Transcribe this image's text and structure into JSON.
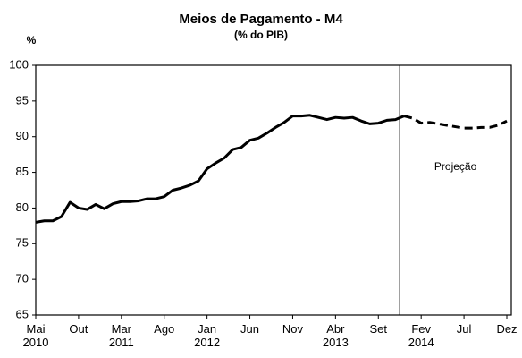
{
  "chart_data": {
    "type": "line",
    "title": "Meios de Pagamento - M4",
    "subtitle": "(% do PIB)",
    "y_label": "%",
    "annotation": "Projeção",
    "categories": [
      "Mai\n2010",
      null,
      null,
      null,
      null,
      "Out",
      null,
      null,
      null,
      null,
      "Mar\n2011",
      null,
      null,
      null,
      null,
      "Ago",
      null,
      null,
      null,
      null,
      "Jan\n2012",
      null,
      null,
      null,
      null,
      "Jun",
      null,
      null,
      null,
      null,
      "Nov",
      null,
      null,
      null,
      null,
      "Abr\n2013",
      null,
      null,
      null,
      null,
      "Set",
      null,
      null,
      null,
      null,
      "Fev\n2014",
      null,
      null,
      null,
      null,
      "Jul",
      null,
      null,
      null,
      null,
      "Dez"
    ],
    "series": [
      {
        "style": "solid",
        "color": "#000000",
        "values": [
          78.0,
          78.2,
          78.2,
          78.8,
          80.8,
          80.0,
          79.8,
          80.5,
          79.9,
          80.6,
          80.9,
          80.9,
          81.0,
          81.3,
          81.3,
          81.6,
          82.5,
          82.8,
          83.2,
          83.8,
          85.5,
          86.3,
          87.0,
          88.2,
          88.5,
          89.5,
          89.8,
          90.5,
          91.3,
          92.0,
          92.9,
          92.9,
          93.0,
          92.7,
          92.4,
          92.7,
          92.6,
          92.7,
          92.2,
          91.8,
          91.9,
          92.3,
          92.4,
          92.9,
          null,
          null,
          null,
          null,
          null,
          null,
          null,
          null,
          null,
          null,
          null,
          null
        ]
      },
      {
        "style": "dashed",
        "color": "#000000",
        "values": [
          null,
          null,
          null,
          null,
          null,
          null,
          null,
          null,
          null,
          null,
          null,
          null,
          null,
          null,
          null,
          null,
          null,
          null,
          null,
          null,
          null,
          null,
          null,
          null,
          null,
          null,
          null,
          null,
          null,
          null,
          null,
          null,
          null,
          null,
          null,
          null,
          null,
          null,
          null,
          null,
          null,
          null,
          null,
          92.9,
          92.6,
          91.9,
          92.0,
          91.8,
          91.6,
          91.4,
          91.2,
          91.2,
          91.3,
          91.3,
          91.6,
          92.2
        ]
      }
    ],
    "ylim": [
      65,
      100
    ],
    "yticks": [
      65,
      70,
      75,
      80,
      85,
      90,
      95,
      100
    ],
    "grid": false
  }
}
